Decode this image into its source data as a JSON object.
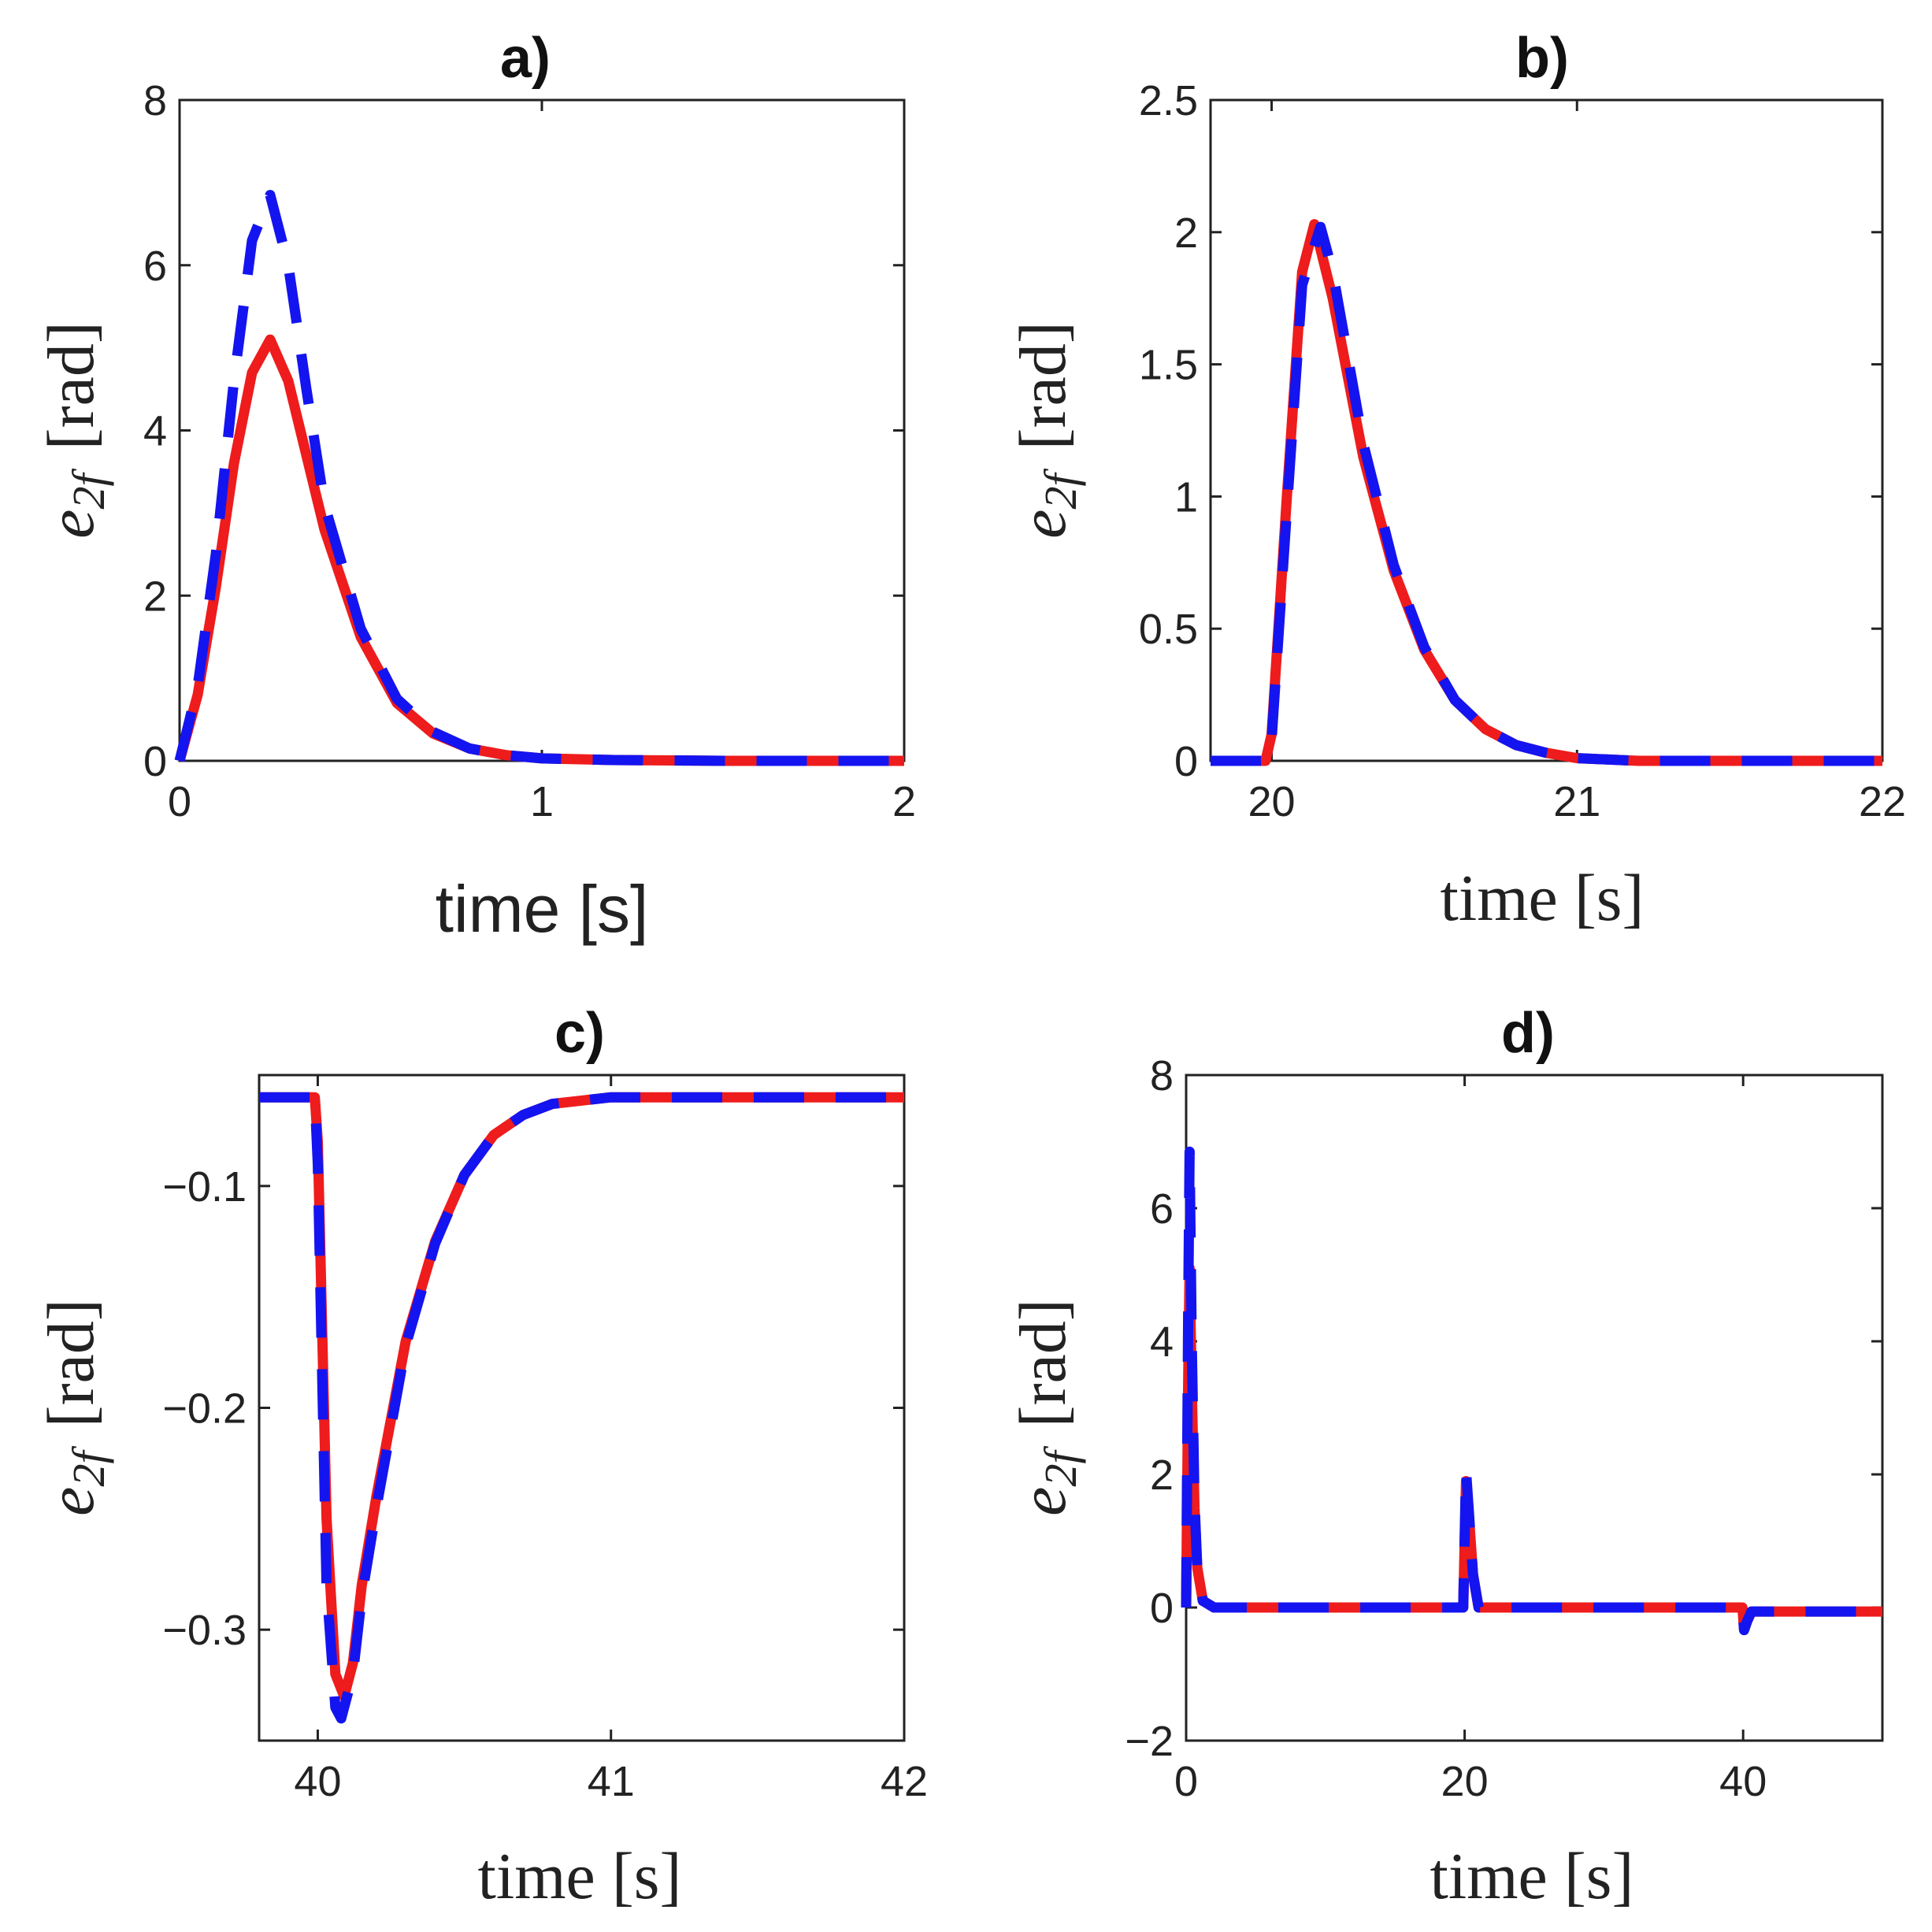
{
  "figure": {
    "background": "#ffffff"
  },
  "series_style": {
    "series1": {
      "color": "#ee1c1c",
      "style": "solid"
    },
    "series2": {
      "color": "#1414f0",
      "style": "dashed"
    }
  },
  "chart_data": [
    {
      "panel": "a",
      "type": "line",
      "title": "a)",
      "xlabel": "time [s]",
      "ylabel": {
        "base": "e",
        "sub": "2f",
        "unit": "[rad]"
      },
      "xlim": [
        0,
        2
      ],
      "ylim": [
        0,
        8
      ],
      "xticks": [
        0,
        1,
        2
      ],
      "yticks": [
        0,
        2,
        4,
        6,
        8
      ],
      "xticklabels": [
        "0",
        "1",
        "2"
      ],
      "yticklabels": [
        "0",
        "2",
        "4",
        "6",
        "8"
      ],
      "series": [
        {
          "name": "series1",
          "x": [
            0,
            0.05,
            0.1,
            0.15,
            0.2,
            0.25,
            0.3,
            0.35,
            0.4,
            0.5,
            0.6,
            0.7,
            0.8,
            0.9,
            1.0,
            1.2,
            1.5,
            2.0
          ],
          "y": [
            0,
            0.8,
            2.1,
            3.6,
            4.7,
            5.1,
            4.6,
            3.7,
            2.8,
            1.5,
            0.7,
            0.33,
            0.15,
            0.07,
            0.03,
            0.01,
            0,
            0
          ]
        },
        {
          "name": "series2",
          "x": [
            0,
            0.05,
            0.1,
            0.15,
            0.2,
            0.25,
            0.3,
            0.35,
            0.4,
            0.5,
            0.6,
            0.7,
            0.8,
            0.9,
            1.0,
            1.2,
            1.5,
            2.0
          ],
          "y": [
            0,
            0.9,
            2.5,
            4.6,
            6.3,
            6.85,
            6.0,
            4.5,
            3.1,
            1.6,
            0.75,
            0.35,
            0.15,
            0.07,
            0.03,
            0.01,
            0,
            0
          ]
        }
      ]
    },
    {
      "panel": "b",
      "type": "line",
      "title": "b)",
      "xlabel": "time [s]",
      "ylabel": {
        "base": "e",
        "sub": "2f",
        "unit": "[rad]"
      },
      "xlim": [
        19.8,
        22
      ],
      "ylim": [
        0,
        2.5
      ],
      "xticks": [
        20,
        21,
        22
      ],
      "yticks": [
        0,
        0.5,
        1,
        1.5,
        2,
        2.5
      ],
      "xticklabels": [
        "20",
        "21",
        "22"
      ],
      "yticklabels": [
        "0",
        "0.5",
        "1",
        "1.5",
        "2",
        "2.5"
      ],
      "series": [
        {
          "name": "series1",
          "x": [
            19.8,
            19.98,
            20.0,
            20.05,
            20.1,
            20.14,
            20.2,
            20.3,
            20.4,
            20.5,
            20.6,
            20.7,
            20.8,
            20.9,
            21.0,
            21.2,
            21.5,
            22.0
          ],
          "y": [
            0,
            0,
            0.1,
            1.0,
            1.85,
            2.03,
            1.75,
            1.15,
            0.72,
            0.42,
            0.23,
            0.12,
            0.06,
            0.03,
            0.01,
            0,
            0,
            0
          ]
        },
        {
          "name": "series2",
          "x": [
            19.8,
            19.98,
            20.0,
            20.05,
            20.1,
            20.16,
            20.2,
            20.3,
            20.4,
            20.5,
            20.6,
            20.7,
            20.8,
            20.9,
            21.0,
            21.2,
            21.5,
            22.0
          ],
          "y": [
            0,
            0,
            0.08,
            0.95,
            1.8,
            2.02,
            1.85,
            1.2,
            0.74,
            0.43,
            0.23,
            0.12,
            0.06,
            0.03,
            0.01,
            0,
            0,
            0
          ]
        }
      ]
    },
    {
      "panel": "c",
      "type": "line",
      "title": "c)",
      "xlabel": "time [s]",
      "ylabel": {
        "base": "e",
        "sub": "2f",
        "unit": "[rad]"
      },
      "xlim": [
        39.8,
        42
      ],
      "ylim": [
        -0.35,
        -0.05
      ],
      "xticks": [
        40,
        41,
        42
      ],
      "yticks": [
        -0.3,
        -0.2,
        -0.1
      ],
      "xticklabels": [
        "40",
        "41",
        "42"
      ],
      "yticklabels": [
        "−0.3",
        "−0.2",
        "−0.1"
      ],
      "series": [
        {
          "name": "series1",
          "x": [
            39.8,
            39.99,
            40.0,
            40.03,
            40.06,
            40.09,
            40.12,
            40.15,
            40.2,
            40.3,
            40.4,
            40.5,
            40.6,
            40.7,
            40.8,
            41.0,
            41.5,
            42.0
          ],
          "y": [
            -0.06,
            -0.06,
            -0.08,
            -0.25,
            -0.32,
            -0.33,
            -0.315,
            -0.28,
            -0.24,
            -0.17,
            -0.125,
            -0.095,
            -0.077,
            -0.068,
            -0.063,
            -0.06,
            -0.06,
            -0.06
          ]
        },
        {
          "name": "series2",
          "x": [
            39.8,
            39.99,
            40.0,
            40.03,
            40.06,
            40.08,
            40.12,
            40.15,
            40.2,
            40.3,
            40.4,
            40.5,
            40.6,
            40.7,
            40.8,
            41.0,
            41.5,
            42.0
          ],
          "y": [
            -0.06,
            -0.06,
            -0.09,
            -0.28,
            -0.335,
            -0.34,
            -0.32,
            -0.285,
            -0.245,
            -0.172,
            -0.126,
            -0.095,
            -0.077,
            -0.068,
            -0.063,
            -0.06,
            -0.06,
            -0.06
          ]
        }
      ]
    },
    {
      "panel": "d",
      "type": "line",
      "title": "d)",
      "xlabel": "time [s]",
      "ylabel": {
        "base": "e",
        "sub": "2f",
        "unit": "[rad]"
      },
      "xlim": [
        0,
        50
      ],
      "ylim": [
        -2,
        8
      ],
      "xticks": [
        0,
        20,
        40
      ],
      "yticks": [
        -2,
        0,
        2,
        4,
        6,
        8
      ],
      "xticklabels": [
        "0",
        "20",
        "40"
      ],
      "yticklabels": [
        "−2",
        "0",
        "2",
        "4",
        "6",
        "8"
      ],
      "series": [
        {
          "name": "series1",
          "x": [
            0,
            0.15,
            0.25,
            0.4,
            0.6,
            0.8,
            1.2,
            2.0,
            19.9,
            20.1,
            20.3,
            20.6,
            21.0,
            39.95,
            40.07,
            40.3,
            40.6,
            50
          ],
          "y": [
            0,
            3.5,
            5.1,
            3.3,
            1.5,
            0.6,
            0.1,
            0,
            0,
            1.9,
            1.4,
            0.5,
            0,
            0,
            -0.33,
            -0.2,
            -0.06,
            -0.06
          ]
        },
        {
          "name": "series2",
          "x": [
            0,
            0.15,
            0.25,
            0.4,
            0.6,
            0.8,
            1.2,
            2.0,
            19.9,
            20.1,
            20.3,
            20.6,
            21.0,
            39.95,
            40.07,
            40.3,
            40.6,
            50
          ],
          "y": [
            0,
            4.6,
            6.85,
            4.0,
            1.6,
            0.6,
            0.1,
            0,
            0,
            2.05,
            1.45,
            0.5,
            0,
            0,
            -0.34,
            -0.2,
            -0.06,
            -0.06
          ]
        }
      ]
    }
  ]
}
